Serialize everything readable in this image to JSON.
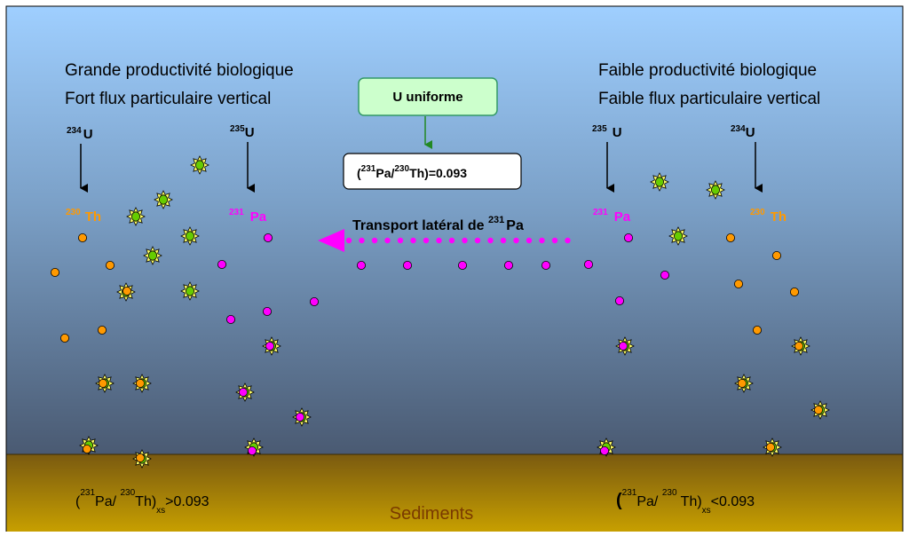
{
  "left": {
    "line1": "Grande productivité biologique",
    "line2": "Fort flux particulaire vertical",
    "u234_mass": "234",
    "u234_sym": "U",
    "u235_mass": "235",
    "u235_sym": "U",
    "th_mass": "230",
    "th_sym": "Th",
    "pa_mass": "231",
    "pa_sym": "Pa",
    "ratio_open": "(",
    "ratio_pa_mass": "231",
    "ratio_pa": "Pa/ ",
    "ratio_th_mass": "230",
    "ratio_th": "Th)",
    "ratio_sub": "xs",
    "ratio_rel": ">0.093"
  },
  "right": {
    "line1": "Faible productivité biologique",
    "line2": "Faible flux particulaire vertical",
    "u235_mass": "235",
    "u235_sym": "U",
    "u234_mass": "234",
    "u234_sym": "U",
    "pa_mass": "231",
    "pa_sym": "Pa",
    "th_mass": "230",
    "th_sym": "Th",
    "ratio_open": "(",
    "ratio_pa_mass": "231",
    "ratio_pa": "Pa/ ",
    "ratio_th_mass": "230",
    "ratio_th": " Th)",
    "ratio_sub": "xs",
    "ratio_rel": "<0.093"
  },
  "center": {
    "uniform_label": "U uniforme",
    "ratio_open": "(",
    "ratio_pa_mass": "231",
    "ratio_pa": "Pa/",
    "ratio_th_mass": "230",
    "ratio_th": "Th)=0.093",
    "transport_label": "Transport latéral de ",
    "transport_mass": "231",
    "transport_sym": "Pa"
  },
  "sediments_label": "Sediments",
  "colors": {
    "sky_top": "#9fcfff",
    "sky_bottom": "#4a5a72",
    "sediment_top": "#7a5a10",
    "sediment_bottom": "#c8a000",
    "thorium": "#ff9900",
    "protactinium": "#ff00ff",
    "particle": "#66cc00",
    "box_fill": "#ccffcc",
    "box_stroke": "#339966"
  }
}
